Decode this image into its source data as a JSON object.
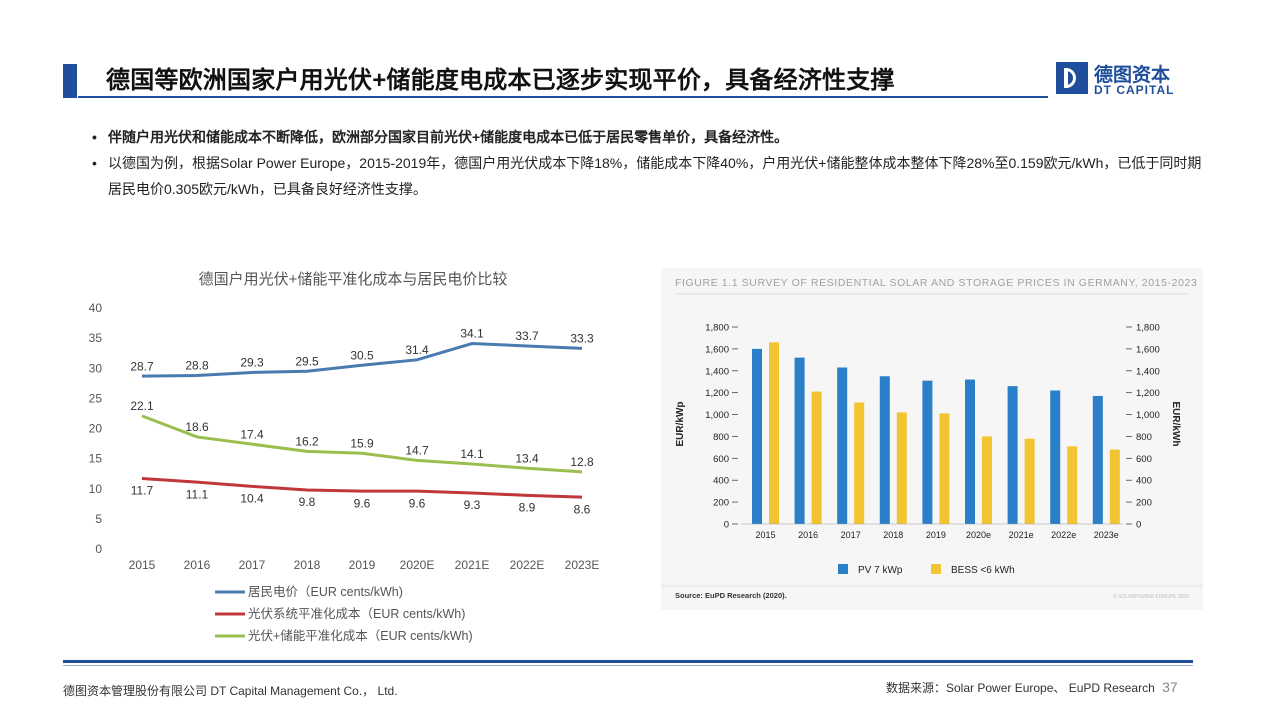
{
  "header": {
    "title": "德国等欧洲国家户用光伏+储能度电成本已逐步实现平价，具备经济性支撑",
    "logo_cn": "德图资本",
    "logo_en": "DT CAPITAL"
  },
  "bullets": [
    "伴随户用光伏和储能成本不断降低，欧洲部分国家目前光伏+储能度电成本已低于居民零售单价，具备经济性。",
    "以德国为例，根据Solar Power Europe，2015-2019年，德国户用光伏成本下降18%，储能成本下降40%，户用光伏+储能整体成本整体下降28%至0.159欧元/kWh，已低于同时期居民电价0.305欧元/kWh，已具备良好经济性支撑。"
  ],
  "footer": {
    "company": "德图资本管理股份有限公司 DT Capital Management Co.， Ltd.",
    "source": "数据来源：Solar Power Europe、 EuPD Research",
    "page": "37"
  },
  "colors": {
    "brand": "#1f4e9c",
    "series_resident": "#4a7bb0",
    "series_pv": "#c0373a",
    "series_pv_storage": "#9bbf4e",
    "bar_pv": "#2a7fc9",
    "bar_bess": "#f2c530"
  },
  "chart_data": [
    {
      "type": "line",
      "title": "德国户用光伏+储能平准化成本与居民电价比较",
      "categories": [
        "2015",
        "2016",
        "2017",
        "2018",
        "2019",
        "2020E",
        "2021E",
        "2022E",
        "2023E"
      ],
      "ylim": [
        0,
        40
      ],
      "yticks": [
        "0",
        "5",
        "10",
        "15",
        "20",
        "25",
        "30",
        "35",
        "40"
      ],
      "grid": false,
      "legend_position": "bottom",
      "series": [
        {
          "name": "居民电价（EUR cents/kWh)",
          "values": [
            28.7,
            28.8,
            29.3,
            29.5,
            30.5,
            31.4,
            34.1,
            33.7,
            33.3
          ],
          "labels": [
            "28.7",
            "28.8",
            "29.3",
            "29.5",
            "30.5",
            "31.4",
            "34.1",
            "33.7",
            "33.3"
          ]
        },
        {
          "name": "光伏系统平准化成本（EUR cents/kWh)",
          "values": [
            11.7,
            11.1,
            10.4,
            9.8,
            9.6,
            9.6,
            9.3,
            8.9,
            8.6
          ],
          "labels": [
            "11.7",
            "11.1",
            "10.4",
            "9.8",
            "9.6",
            "9.6",
            "9.3",
            "8.9",
            "8.6"
          ]
        },
        {
          "name": "光伏+储能平准化成本（EUR cents/kWh)",
          "values": [
            22.1,
            18.6,
            17.4,
            16.2,
            15.9,
            14.7,
            14.1,
            13.4,
            12.8
          ],
          "labels": [
            "22.1",
            "18.6",
            "17.4",
            "16.2",
            "15.9",
            "14.7",
            "14.1",
            "13.4",
            "12.8"
          ]
        }
      ]
    },
    {
      "type": "bar",
      "title": "FIGURE 1.1 SURVEY OF RESIDENTIAL SOLAR AND STORAGE PRICES IN GERMANY, 2015-2023",
      "categories": [
        "2015",
        "2016",
        "2017",
        "2018",
        "2019",
        "2020e",
        "2021e",
        "2022e",
        "2023e"
      ],
      "ylabel": "EUR/kWp",
      "y2label": "EUR/kWh",
      "ylim": [
        0,
        1800
      ],
      "yticks": [
        "0",
        "200",
        "400",
        "600",
        "800",
        "1,000",
        "1,200",
        "1,400",
        "1,600",
        "1,800"
      ],
      "legend_position": "bottom",
      "series": [
        {
          "name": "PV 7 kWp",
          "values": [
            1600,
            1520,
            1430,
            1350,
            1310,
            1320,
            1260,
            1220,
            1170
          ]
        },
        {
          "name": "BESS <6 kWh",
          "values": [
            1660,
            1210,
            1110,
            1020,
            1010,
            800,
            780,
            710,
            680
          ]
        }
      ],
      "source": "Source: EuPD Research (2020).",
      "watermark": "© SOLARPOWER EUROPE 2020"
    }
  ]
}
